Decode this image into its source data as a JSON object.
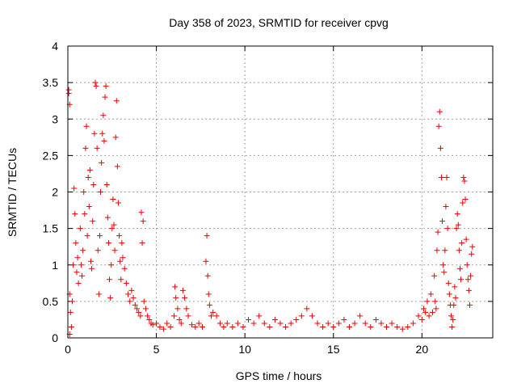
{
  "chart_data": {
    "type": "scatter",
    "title": "Day 358 of 2023, SRMTID for receiver cpvg",
    "xlabel": "GPS time / hours",
    "ylabel": "SRMTID / TECUs",
    "xlim": [
      0,
      24
    ],
    "ylim": [
      0,
      4
    ],
    "x_ticks": [
      0,
      5,
      10,
      15,
      20
    ],
    "x_tick_labels": [
      "0",
      "5",
      "10",
      "15",
      "20"
    ],
    "y_ticks": [
      0,
      0.5,
      1,
      1.5,
      2,
      2.5,
      3,
      3.5,
      4
    ],
    "y_tick_labels": [
      "0",
      "0.5",
      "1",
      "1.5",
      "2",
      "2.5",
      "3",
      "3.5",
      "4"
    ],
    "grid": true,
    "marker": "+",
    "color": "#ee0000",
    "series": [
      {
        "name": "SRMTID",
        "points": [
          [
            0.05,
            3.4
          ],
          [
            0.1,
            3.2
          ],
          [
            0.05,
            3.35
          ],
          [
            0.1,
            0.6
          ],
          [
            0.15,
            0.35
          ],
          [
            0.2,
            0.15
          ],
          [
            0.1,
            0.05
          ],
          [
            0.25,
            0.5
          ],
          [
            0.3,
            1.0
          ],
          [
            0.35,
            2.05
          ],
          [
            0.4,
            1.7
          ],
          [
            0.45,
            1.3
          ],
          [
            0.5,
            0.9
          ],
          [
            0.55,
            1.1
          ],
          [
            0.6,
            0.75
          ],
          [
            0.7,
            1.5
          ],
          [
            0.75,
            1.0
          ],
          [
            0.8,
            0.85
          ],
          [
            0.85,
            1.2
          ],
          [
            0.9,
            2.0
          ],
          [
            0.95,
            1.7
          ],
          [
            1.0,
            2.6
          ],
          [
            1.05,
            2.9
          ],
          [
            1.1,
            1.4
          ],
          [
            1.15,
            2.2
          ],
          [
            1.2,
            1.8
          ],
          [
            1.25,
            2.3
          ],
          [
            1.3,
            1.05
          ],
          [
            1.35,
            0.95
          ],
          [
            1.4,
            1.6
          ],
          [
            1.45,
            2.1
          ],
          [
            1.5,
            2.8
          ],
          [
            1.55,
            3.5
          ],
          [
            1.6,
            3.45
          ],
          [
            1.65,
            2.6
          ],
          [
            1.7,
            1.2
          ],
          [
            1.75,
            0.6
          ],
          [
            1.8,
            1.4
          ],
          [
            1.85,
            2.0
          ],
          [
            1.9,
            2.4
          ],
          [
            1.95,
            2.8
          ],
          [
            2.0,
            3.05
          ],
          [
            2.05,
            2.7
          ],
          [
            2.1,
            3.3
          ],
          [
            2.15,
            3.45
          ],
          [
            2.2,
            2.1
          ],
          [
            2.25,
            1.65
          ],
          [
            2.3,
            1.3
          ],
          [
            2.35,
            0.8
          ],
          [
            2.4,
            0.55
          ],
          [
            2.45,
            1.0
          ],
          [
            2.5,
            1.5
          ],
          [
            2.55,
            1.9
          ],
          [
            2.6,
            1.55
          ],
          [
            2.65,
            1.2
          ],
          [
            2.7,
            2.75
          ],
          [
            2.75,
            3.25
          ],
          [
            2.8,
            2.35
          ],
          [
            2.85,
            1.85
          ],
          [
            2.9,
            1.4
          ],
          [
            2.95,
            1.05
          ],
          [
            3.0,
            0.8
          ],
          [
            3.05,
            1.3
          ],
          [
            3.1,
            1.1
          ],
          [
            3.2,
            0.95
          ],
          [
            3.3,
            0.75
          ],
          [
            3.4,
            0.6
          ],
          [
            3.5,
            0.5
          ],
          [
            3.6,
            0.65
          ],
          [
            3.7,
            0.55
          ],
          [
            3.8,
            0.45
          ],
          [
            3.9,
            0.4
          ],
          [
            4.0,
            0.35
          ],
          [
            4.1,
            0.3
          ],
          [
            4.15,
            1.72
          ],
          [
            4.2,
            1.3
          ],
          [
            4.25,
            1.6
          ],
          [
            4.3,
            0.5
          ],
          [
            4.4,
            0.4
          ],
          [
            4.5,
            0.3
          ],
          [
            4.6,
            0.25
          ],
          [
            4.7,
            0.2
          ],
          [
            4.8,
            0.18
          ],
          [
            5.0,
            0.2
          ],
          [
            5.2,
            0.15
          ],
          [
            5.4,
            0.12
          ],
          [
            5.6,
            0.2
          ],
          [
            5.8,
            0.15
          ],
          [
            6.0,
            0.3
          ],
          [
            6.05,
            0.7
          ],
          [
            6.1,
            0.55
          ],
          [
            6.2,
            0.4
          ],
          [
            6.3,
            0.25
          ],
          [
            6.4,
            0.2
          ],
          [
            6.5,
            0.65
          ],
          [
            6.6,
            0.55
          ],
          [
            6.7,
            0.4
          ],
          [
            6.8,
            0.3
          ],
          [
            7.0,
            0.18
          ],
          [
            7.2,
            0.15
          ],
          [
            7.4,
            0.2
          ],
          [
            7.6,
            0.15
          ],
          [
            7.8,
            1.05
          ],
          [
            7.85,
            1.4
          ],
          [
            7.9,
            0.85
          ],
          [
            7.95,
            0.6
          ],
          [
            8.0,
            0.45
          ],
          [
            8.1,
            0.3
          ],
          [
            8.2,
            0.35
          ],
          [
            8.4,
            0.3
          ],
          [
            8.6,
            0.2
          ],
          [
            8.8,
            0.15
          ],
          [
            9.0,
            0.2
          ],
          [
            9.3,
            0.15
          ],
          [
            9.6,
            0.2
          ],
          [
            9.9,
            0.15
          ],
          [
            10.2,
            0.25
          ],
          [
            10.5,
            0.2
          ],
          [
            10.8,
            0.3
          ],
          [
            11.1,
            0.2
          ],
          [
            11.4,
            0.15
          ],
          [
            11.7,
            0.25
          ],
          [
            12.0,
            0.2
          ],
          [
            12.3,
            0.15
          ],
          [
            12.6,
            0.2
          ],
          [
            12.9,
            0.25
          ],
          [
            13.2,
            0.3
          ],
          [
            13.5,
            0.4
          ],
          [
            13.8,
            0.3
          ],
          [
            14.1,
            0.2
          ],
          [
            14.4,
            0.15
          ],
          [
            14.7,
            0.2
          ],
          [
            15.0,
            0.15
          ],
          [
            15.3,
            0.2
          ],
          [
            15.6,
            0.25
          ],
          [
            15.9,
            0.15
          ],
          [
            16.2,
            0.2
          ],
          [
            16.5,
            0.3
          ],
          [
            16.8,
            0.2
          ],
          [
            17.1,
            0.15
          ],
          [
            17.4,
            0.25
          ],
          [
            17.7,
            0.2
          ],
          [
            18.0,
            0.15
          ],
          [
            18.3,
            0.2
          ],
          [
            18.6,
            0.15
          ],
          [
            18.9,
            0.12
          ],
          [
            19.2,
            0.15
          ],
          [
            19.5,
            0.2
          ],
          [
            19.8,
            0.3
          ],
          [
            20.0,
            0.25
          ],
          [
            20.1,
            0.4
          ],
          [
            20.2,
            0.35
          ],
          [
            20.3,
            0.5
          ],
          [
            20.4,
            0.3
          ],
          [
            20.5,
            0.6
          ],
          [
            20.6,
            0.35
          ],
          [
            20.7,
            0.85
          ],
          [
            20.75,
            0.5
          ],
          [
            20.8,
            0.4
          ],
          [
            20.85,
            1.2
          ],
          [
            20.9,
            1.45
          ],
          [
            20.95,
            2.9
          ],
          [
            21.0,
            3.1
          ],
          [
            21.05,
            2.6
          ],
          [
            21.1,
            2.2
          ],
          [
            21.15,
            1.6
          ],
          [
            21.2,
            1.0
          ],
          [
            21.25,
            0.9
          ],
          [
            21.3,
            1.2
          ],
          [
            21.35,
            1.8
          ],
          [
            21.4,
            2.2
          ],
          [
            21.45,
            1.5
          ],
          [
            21.5,
            0.75
          ],
          [
            21.55,
            0.6
          ],
          [
            21.6,
            0.45
          ],
          [
            21.65,
            0.3
          ],
          [
            21.7,
            0.15
          ],
          [
            21.75,
            0.25
          ],
          [
            21.8,
            0.45
          ],
          [
            21.85,
            0.7
          ],
          [
            21.9,
            0.55
          ],
          [
            21.95,
            1.5
          ],
          [
            22.0,
            1.7
          ],
          [
            22.05,
            1.55
          ],
          [
            22.1,
            1.2
          ],
          [
            22.15,
            0.95
          ],
          [
            22.2,
            0.8
          ],
          [
            22.25,
            1.3
          ],
          [
            22.3,
            1.85
          ],
          [
            22.35,
            2.2
          ],
          [
            22.4,
            2.15
          ],
          [
            22.45,
            1.9
          ],
          [
            22.5,
            1.35
          ],
          [
            22.55,
            1.0
          ],
          [
            22.6,
            0.8
          ],
          [
            22.65,
            0.65
          ],
          [
            22.7,
            0.45
          ],
          [
            22.75,
            0.85
          ],
          [
            22.8,
            1.15
          ],
          [
            22.85,
            1.25
          ]
        ]
      }
    ]
  }
}
